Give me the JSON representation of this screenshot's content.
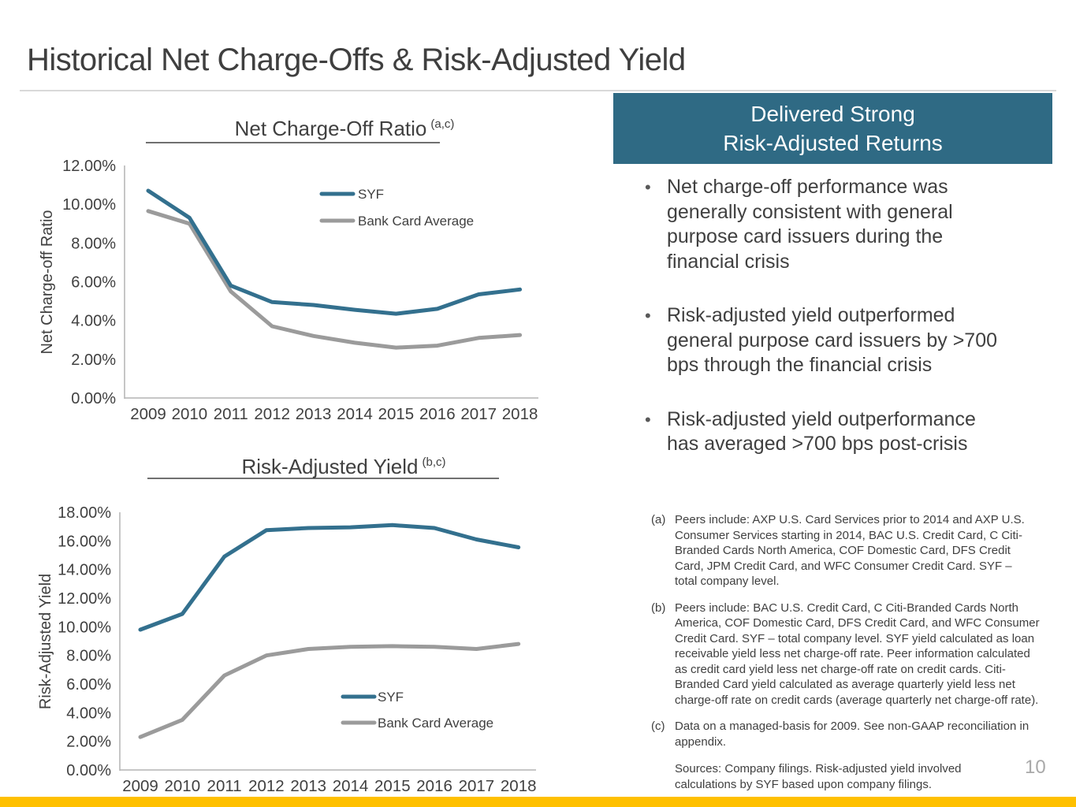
{
  "slide": {
    "title": "Historical Net Charge-Offs & Risk-Adjusted Yield",
    "page_number": "10",
    "accent_bar_color": "#FFC000",
    "divider_color": "#D9D9D9"
  },
  "callout": {
    "title_line1": "Delivered Strong",
    "title_line2": "Risk-Adjusted Returns",
    "background": "#2F6A84",
    "bullets": [
      "Net charge-off performance was\ngenerally consistent with general\npurpose card issuers during the\nfinancial crisis",
      "Risk-adjusted yield outperformed\ngeneral purpose card issuers by >700\nbps through the financial crisis",
      "Risk-adjusted yield outperformance\nhas averaged >700 bps post-crisis"
    ]
  },
  "footnotes": [
    {
      "label": "(a)",
      "text": "Peers include: AXP U.S. Card Services prior to 2014 and AXP U.S.\nConsumer Services starting in 2014, BAC U.S. Credit Card, C Citi-\nBranded Cards North America, COF Domestic Card, DFS Credit\nCard, JPM Credit Card, and WFC Consumer Credit Card.  SYF –\ntotal company level."
    },
    {
      "label": "(b)",
      "text": "Peers include: BAC U.S. Credit Card, C Citi-Branded Cards North\nAmerica, COF Domestic Card, DFS Credit Card, and WFC Consumer\nCredit Card. SYF – total company level. SYF yield calculated as loan\nreceivable yield less net charge-off rate.  Peer information calculated\nas credit card yield less net charge-off rate on credit cards. Citi-\nBranded Card yield calculated as average quarterly yield less net\ncharge-off rate on credit cards (average quarterly net charge-off rate)."
    },
    {
      "label": "(c)",
      "text": "Data on a managed-basis for 2009. See non-GAAP reconciliation in\nappendix."
    }
  ],
  "sources": "Sources: Company filings. Risk-adjusted yield involved\ncalculations by SYF based upon company filings.",
  "chart_data": [
    {
      "id": "nco",
      "type": "line",
      "title": "Net Charge-Off Ratio",
      "title_superscript": "(a,c)",
      "ylabel": "Net Charge-off Ratio",
      "xlabel": "",
      "categories": [
        "2009",
        "2010",
        "2011",
        "2012",
        "2013",
        "2014",
        "2015",
        "2016",
        "2017",
        "2018"
      ],
      "series": [
        {
          "name": "SYF",
          "color": "#33708E",
          "values": [
            10.7,
            9.3,
            5.8,
            4.95,
            4.8,
            4.55,
            4.35,
            4.6,
            5.35,
            5.6
          ]
        },
        {
          "name": "Bank Card Average",
          "color": "#9B9B9B",
          "values": [
            9.65,
            9.0,
            5.5,
            3.7,
            3.2,
            2.85,
            2.6,
            2.7,
            3.1,
            3.25
          ]
        }
      ],
      "ylim": [
        0,
        12
      ],
      "ytick_step": 2,
      "ytick_format": "percent_2dp",
      "grid": false,
      "legend_position": "top-right"
    },
    {
      "id": "ray",
      "type": "line",
      "title": "Risk-Adjusted Yield",
      "title_superscript": "(b,c)",
      "ylabel": "Risk-Adjusted Yield",
      "xlabel": "",
      "categories": [
        "2009",
        "2010",
        "2011",
        "2012",
        "2013",
        "2014",
        "2015",
        "2016",
        "2017",
        "2018"
      ],
      "series": [
        {
          "name": "SYF",
          "color": "#33708E",
          "values": [
            9.8,
            10.9,
            14.9,
            16.75,
            16.9,
            16.95,
            17.1,
            16.9,
            16.1,
            15.55
          ]
        },
        {
          "name": "Bank Card Average",
          "color": "#9B9B9B",
          "values": [
            2.3,
            3.5,
            6.6,
            8.0,
            8.45,
            8.6,
            8.65,
            8.6,
            8.45,
            8.8
          ]
        }
      ],
      "ylim": [
        0,
        18
      ],
      "ytick_step": 2,
      "ytick_format": "percent_2dp",
      "grid": false,
      "legend_position": "bottom-right"
    }
  ]
}
